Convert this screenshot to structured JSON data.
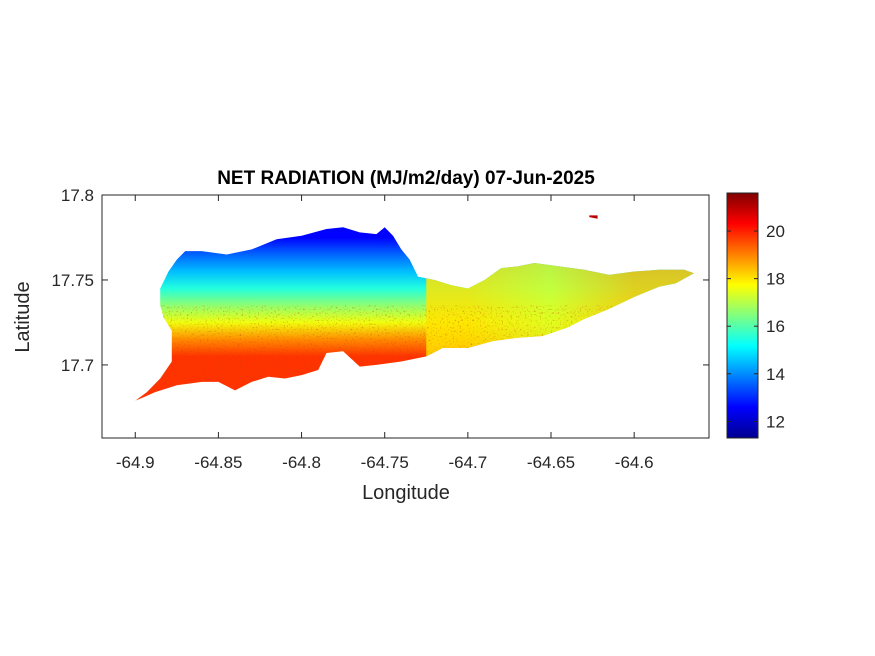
{
  "chart_data": {
    "type": "heatmap",
    "title": "NET RADIATION (MJ/m2/day) 07-Jun-2025",
    "xlabel": "Longitude",
    "ylabel": "Latitude",
    "xlim": [
      -64.92,
      -64.555
    ],
    "ylim": [
      17.657,
      17.8
    ],
    "x_ticks": [
      -64.9,
      -64.85,
      -64.8,
      -64.75,
      -64.7,
      -64.65,
      -64.6
    ],
    "x_tick_labels": [
      "-64.9",
      "-64.85",
      "-64.8",
      "-64.75",
      "-64.7",
      "-64.65",
      "-64.6"
    ],
    "y_ticks": [
      17.7,
      17.75,
      17.8
    ],
    "y_tick_labels": [
      "17.7",
      "17.75",
      "17.8"
    ],
    "colorbar": {
      "colormap": "jet",
      "range": [
        11.3,
        21.6
      ],
      "ticks": [
        12,
        14,
        16,
        18,
        20
      ],
      "tick_labels": [
        "12",
        "14",
        "16",
        "18",
        "20"
      ]
    },
    "colormap_stops": [
      "#00008f",
      "#0000ff",
      "#0080ff",
      "#00ffff",
      "#80ff80",
      "#ffff00",
      "#ff8000",
      "#ff0000",
      "#800000"
    ],
    "land_outline": [
      [
        -64.9,
        17.679
      ],
      [
        -64.893,
        17.684
      ],
      [
        -64.885,
        17.692
      ],
      [
        -64.878,
        17.702
      ],
      [
        -64.878,
        17.72
      ],
      [
        -64.883,
        17.728
      ],
      [
        -64.885,
        17.735
      ],
      [
        -64.885,
        17.745
      ],
      [
        -64.88,
        17.755
      ],
      [
        -64.875,
        17.762
      ],
      [
        -64.87,
        17.767
      ],
      [
        -64.86,
        17.767
      ],
      [
        -64.845,
        17.765
      ],
      [
        -64.83,
        17.768
      ],
      [
        -64.815,
        17.774
      ],
      [
        -64.8,
        17.776
      ],
      [
        -64.785,
        17.78
      ],
      [
        -64.775,
        17.781
      ],
      [
        -64.765,
        17.778
      ],
      [
        -64.755,
        17.777
      ],
      [
        -64.75,
        17.781
      ],
      [
        -64.745,
        17.776
      ],
      [
        -64.74,
        17.768
      ],
      [
        -64.735,
        17.762
      ],
      [
        -64.73,
        17.752
      ],
      [
        -64.72,
        17.75
      ],
      [
        -64.71,
        17.747
      ],
      [
        -64.7,
        17.745
      ],
      [
        -64.69,
        17.75
      ],
      [
        -64.68,
        17.757
      ],
      [
        -64.67,
        17.758
      ],
      [
        -64.66,
        17.76
      ],
      [
        -64.645,
        17.758
      ],
      [
        -64.63,
        17.756
      ],
      [
        -64.615,
        17.753
      ],
      [
        -64.6,
        17.755
      ],
      [
        -64.585,
        17.756
      ],
      [
        -64.57,
        17.756
      ],
      [
        -64.564,
        17.754
      ],
      [
        -64.575,
        17.748
      ],
      [
        -64.585,
        17.746
      ],
      [
        -64.6,
        17.74
      ],
      [
        -64.615,
        17.733
      ],
      [
        -64.63,
        17.727
      ],
      [
        -64.64,
        17.722
      ],
      [
        -64.655,
        17.717
      ],
      [
        -64.67,
        17.716
      ],
      [
        -64.685,
        17.714
      ],
      [
        -64.7,
        17.71
      ],
      [
        -64.715,
        17.71
      ],
      [
        -64.725,
        17.705
      ],
      [
        -64.74,
        17.702
      ],
      [
        -64.755,
        17.7
      ],
      [
        -64.765,
        17.699
      ],
      [
        -64.775,
        17.708
      ],
      [
        -64.785,
        17.707
      ],
      [
        -64.79,
        17.697
      ],
      [
        -64.8,
        17.694
      ],
      [
        -64.81,
        17.692
      ],
      [
        -64.82,
        17.693
      ],
      [
        -64.83,
        17.69
      ],
      [
        -64.84,
        17.685
      ],
      [
        -64.85,
        17.69
      ],
      [
        -64.86,
        17.69
      ],
      [
        -64.875,
        17.688
      ],
      [
        -64.888,
        17.684
      ],
      [
        -64.895,
        17.681
      ]
    ],
    "islet_outline": [
      [
        -64.627,
        17.788
      ],
      [
        -64.622,
        17.788
      ],
      [
        -64.622,
        17.786
      ],
      [
        -64.627,
        17.787
      ]
    ],
    "gradient_bands": [
      {
        "lat": 17.705,
        "value": 19.8
      },
      {
        "lat": 17.715,
        "value": 18.9
      },
      {
        "lat": 17.725,
        "value": 17.6
      },
      {
        "lat": 17.735,
        "value": 16.6
      },
      {
        "lat": 17.745,
        "value": 15.5
      },
      {
        "lat": 17.755,
        "value": 14.5
      },
      {
        "lat": 17.765,
        "value": 13.6
      },
      {
        "lat": 17.775,
        "value": 12.6
      }
    ],
    "east_values": [
      {
        "lon": -64.7,
        "value": 18.0
      },
      {
        "lon": -64.65,
        "value": 17.4
      },
      {
        "lon": -64.6,
        "value": 18.3
      }
    ]
  }
}
